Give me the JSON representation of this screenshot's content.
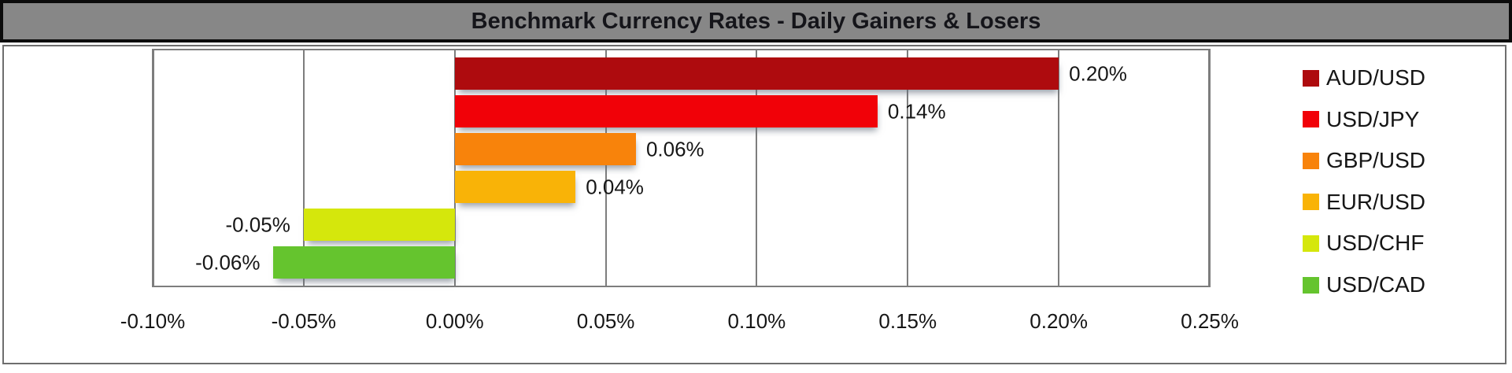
{
  "title": "Benchmark Currency Rates - Daily Gainers & Losers",
  "chart_data": {
    "type": "bar",
    "orientation": "horizontal",
    "title": "Benchmark Currency Rates - Daily Gainers & Losers",
    "series": [
      {
        "name": "AUD/USD",
        "value": 0.2,
        "label": "0.20%",
        "color": "#AE0B0E"
      },
      {
        "name": "USD/JPY",
        "value": 0.14,
        "label": "0.14%",
        "color": "#F10108"
      },
      {
        "name": "GBP/USD",
        "value": 0.06,
        "label": "0.06%",
        "color": "#F8830B"
      },
      {
        "name": "EUR/USD",
        "value": 0.04,
        "label": "0.04%",
        "color": "#F9B307"
      },
      {
        "name": "USD/CHF",
        "value": -0.05,
        "label": "-0.05%",
        "color": "#D5E70C"
      },
      {
        "name": "USD/CAD",
        "value": -0.06,
        "label": "-0.06%",
        "color": "#65C42E"
      }
    ],
    "x_axis": {
      "unit": "%",
      "min": -0.1,
      "max": 0.25,
      "step": 0.05,
      "tick_values": [
        -0.1,
        -0.05,
        0.0,
        0.05,
        0.1,
        0.15,
        0.2,
        0.25
      ],
      "tick_labels": [
        "-0.10%",
        "-0.05%",
        "0.00%",
        "0.05%",
        "0.10%",
        "0.15%",
        "0.20%",
        "0.25%"
      ]
    },
    "grid": true,
    "legend_position": "right",
    "data_labels": true
  }
}
